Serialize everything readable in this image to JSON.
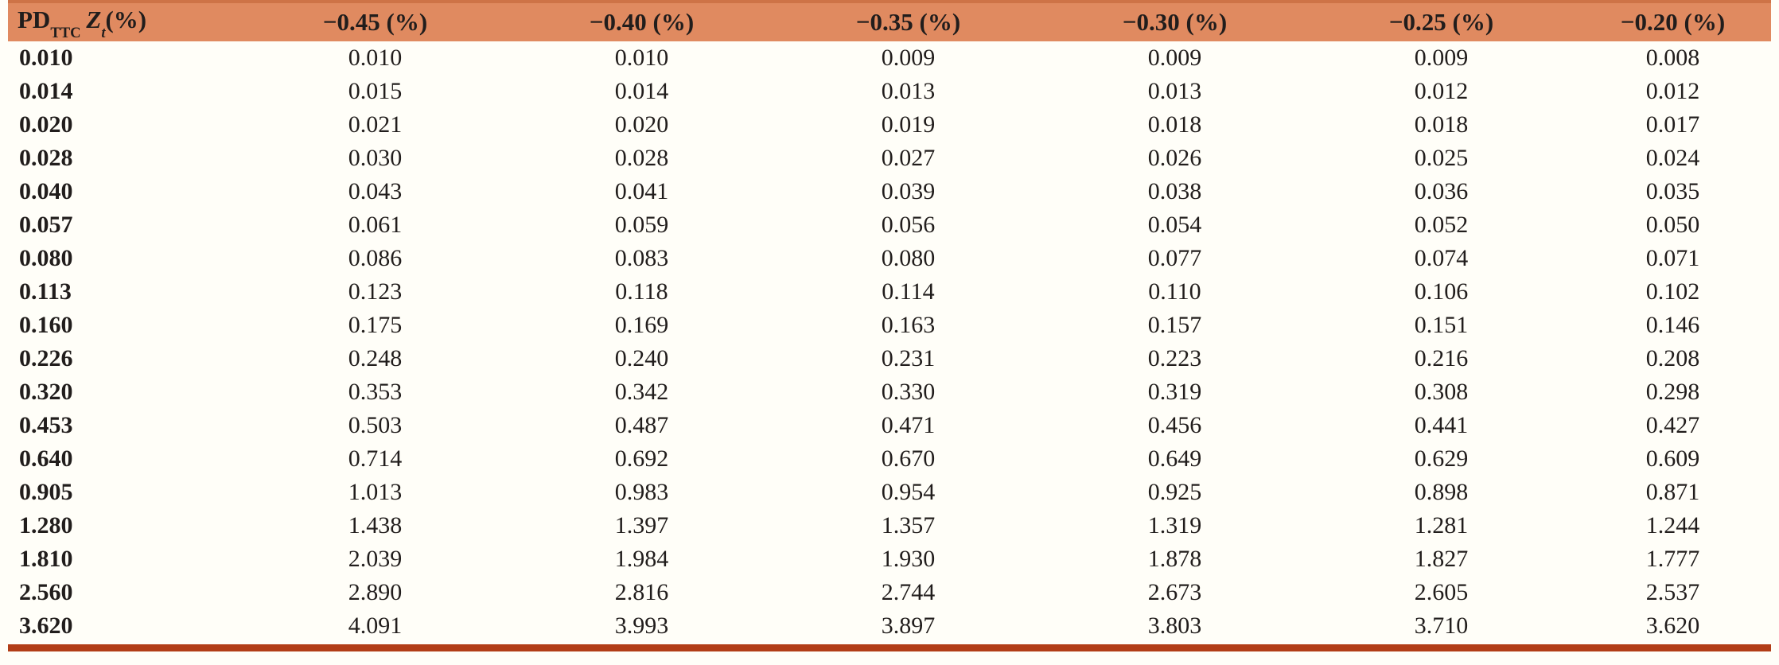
{
  "page": {
    "background": "#FFFEF8"
  },
  "table": {
    "header_bg": "#E08A60",
    "header_top_edge": "#CE7347",
    "bottom_rule_color": "#B23D17",
    "text_color": "#211D1C",
    "corner": {
      "base": "PD",
      "base_sub": "TTC",
      "var": "Z",
      "var_sub": "t",
      "unit": "(%)"
    },
    "columns": [
      "−0.45 (%)",
      "−0.40 (%)",
      "−0.35 (%)",
      "−0.30 (%)",
      "−0.25 (%)",
      "−0.20 (%)"
    ],
    "rows": [
      {
        "label": "0.010",
        "values": [
          "0.010",
          "0.010",
          "0.009",
          "0.009",
          "0.009",
          "0.008"
        ]
      },
      {
        "label": "0.014",
        "values": [
          "0.015",
          "0.014",
          "0.013",
          "0.013",
          "0.012",
          "0.012"
        ]
      },
      {
        "label": "0.020",
        "values": [
          "0.021",
          "0.020",
          "0.019",
          "0.018",
          "0.018",
          "0.017"
        ]
      },
      {
        "label": "0.028",
        "values": [
          "0.030",
          "0.028",
          "0.027",
          "0.026",
          "0.025",
          "0.024"
        ]
      },
      {
        "label": "0.040",
        "values": [
          "0.043",
          "0.041",
          "0.039",
          "0.038",
          "0.036",
          "0.035"
        ]
      },
      {
        "label": "0.057",
        "values": [
          "0.061",
          "0.059",
          "0.056",
          "0.054",
          "0.052",
          "0.050"
        ]
      },
      {
        "label": "0.080",
        "values": [
          "0.086",
          "0.083",
          "0.080",
          "0.077",
          "0.074",
          "0.071"
        ]
      },
      {
        "label": "0.113",
        "values": [
          "0.123",
          "0.118",
          "0.114",
          "0.110",
          "0.106",
          "0.102"
        ]
      },
      {
        "label": "0.160",
        "values": [
          "0.175",
          "0.169",
          "0.163",
          "0.157",
          "0.151",
          "0.146"
        ]
      },
      {
        "label": "0.226",
        "values": [
          "0.248",
          "0.240",
          "0.231",
          "0.223",
          "0.216",
          "0.208"
        ]
      },
      {
        "label": "0.320",
        "values": [
          "0.353",
          "0.342",
          "0.330",
          "0.319",
          "0.308",
          "0.298"
        ]
      },
      {
        "label": "0.453",
        "values": [
          "0.503",
          "0.487",
          "0.471",
          "0.456",
          "0.441",
          "0.427"
        ]
      },
      {
        "label": "0.640",
        "values": [
          "0.714",
          "0.692",
          "0.670",
          "0.649",
          "0.629",
          "0.609"
        ]
      },
      {
        "label": "0.905",
        "values": [
          "1.013",
          "0.983",
          "0.954",
          "0.925",
          "0.898",
          "0.871"
        ]
      },
      {
        "label": "1.280",
        "values": [
          "1.438",
          "1.397",
          "1.357",
          "1.319",
          "1.281",
          "1.244"
        ]
      },
      {
        "label": "1.810",
        "values": [
          "2.039",
          "1.984",
          "1.930",
          "1.878",
          "1.827",
          "1.777"
        ]
      },
      {
        "label": "2.560",
        "values": [
          "2.890",
          "2.816",
          "2.744",
          "2.673",
          "2.605",
          "2.537"
        ]
      },
      {
        "label": "3.620",
        "values": [
          "4.091",
          "3.993",
          "3.897",
          "3.803",
          "3.710",
          "3.620"
        ]
      }
    ]
  }
}
